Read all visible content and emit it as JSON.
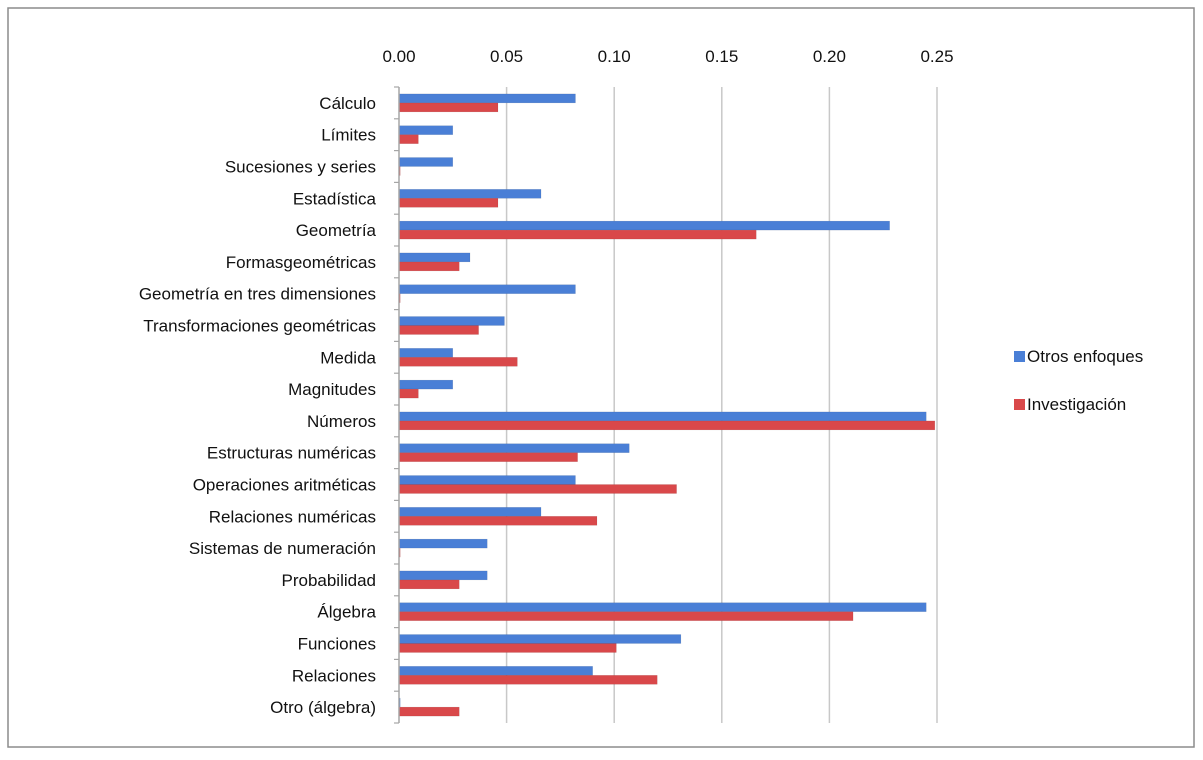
{
  "chart_data": {
    "type": "bar",
    "orientation": "horizontal",
    "categories": [
      "Cálculo",
      "Límites",
      "Sucesiones y series",
      "Estadística",
      "Geometría",
      "Formasgeométricas",
      "Geometría en tres dimensiones",
      "Transformaciones geométricas",
      "Medida",
      "Magnitudes",
      "Números",
      "Estructuras numéricas",
      "Operaciones aritméticas",
      "Relaciones numéricas",
      "Sistemas de numeración",
      "Probabilidad",
      "Álgebra",
      "Funciones",
      "Relaciones",
      "Otro (álgebra)"
    ],
    "series": [
      {
        "name": "Otros enfoques",
        "color": "#4a7fd6",
        "values": [
          0.082,
          0.025,
          0.025,
          0.066,
          0.228,
          0.033,
          0.082,
          0.049,
          0.025,
          0.025,
          0.245,
          0.107,
          0.082,
          0.066,
          0.041,
          0.041,
          0.245,
          0.131,
          0.09,
          0.0
        ]
      },
      {
        "name": "Investigación",
        "color": "#d9484a",
        "values": [
          0.046,
          0.009,
          0.0,
          0.046,
          0.166,
          0.028,
          0.0,
          0.037,
          0.055,
          0.009,
          0.249,
          0.083,
          0.129,
          0.092,
          0.0,
          0.028,
          0.211,
          0.101,
          0.12,
          0.028
        ]
      }
    ],
    "xaxis": {
      "ticks": [
        "0.00",
        "0.05",
        "0.10",
        "0.15",
        "0.20",
        "0.25"
      ],
      "range": [
        0,
        0.25
      ],
      "position": "top",
      "gridlines": true
    },
    "legend": {
      "position": "right"
    }
  }
}
